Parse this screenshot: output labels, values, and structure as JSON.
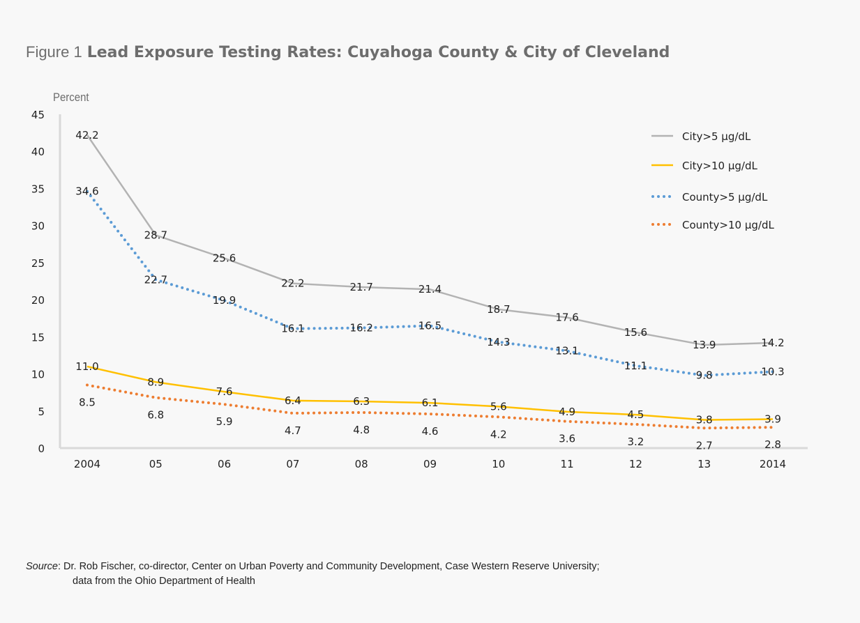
{
  "title": {
    "prefix": "Figure 1",
    "main": "Lead Exposure Testing Rates: Cuyahoga County & City of Cleveland"
  },
  "source": {
    "label": "Source",
    "line1": "Dr. Rob Fischer, co-director, Center on Urban Poverty and Community Development, Case Western Reserve University;",
    "line2": "data from the Ohio Department of Health"
  },
  "chart_data": {
    "type": "line",
    "title": "Lead Exposure Testing Rates: Cuyahoga County & City of Cleveland",
    "ylabel": "Percent",
    "xlabel": "",
    "categories": [
      "2004",
      "05",
      "06",
      "07",
      "08",
      "09",
      "10",
      "11",
      "12",
      "13",
      "2014"
    ],
    "ylim": [
      0,
      45
    ],
    "yticks": [
      0,
      5,
      10,
      15,
      20,
      25,
      30,
      35,
      40,
      45
    ],
    "grid": false,
    "legend": "top-right",
    "series": [
      {
        "name": "City>5 µg/dL",
        "color": "#b3b3b3",
        "style": "solid",
        "values": [
          42.2,
          28.7,
          25.6,
          22.2,
          21.7,
          21.4,
          18.7,
          17.6,
          15.6,
          13.9,
          14.2
        ],
        "labels": [
          "42.2",
          "28.7",
          "25.6",
          "22.2",
          "21.7",
          "21.4",
          "18.7",
          "17.6",
          "15.6",
          "13.9",
          "14.2"
        ]
      },
      {
        "name": "City>10 µg/dL",
        "color": "#ffc000",
        "style": "solid",
        "values": [
          11.0,
          8.9,
          7.6,
          6.4,
          6.3,
          6.1,
          5.6,
          4.9,
          4.5,
          3.8,
          3.9
        ],
        "labels": [
          "11.0",
          "8.9",
          "7.6",
          "6.4",
          "6.3",
          "6.1",
          "5.6",
          "4.9",
          "4.5",
          "3.8",
          "3.9"
        ]
      },
      {
        "name": "County>5 µg/dL",
        "color": "#5b9bd5",
        "style": "dotted",
        "values": [
          34.6,
          22.7,
          19.9,
          16.1,
          16.2,
          16.5,
          14.3,
          13.1,
          11.1,
          9.8,
          10.3
        ],
        "labels": [
          "34.6",
          "22.7",
          "19.9",
          "16.1",
          "16.2",
          "16.5",
          "14.3",
          "13.1",
          "11.1",
          "9.8",
          "10.3"
        ]
      },
      {
        "name": "County>10 µg/dL",
        "color": "#ed7d31",
        "style": "dotted",
        "values": [
          8.5,
          6.8,
          5.9,
          4.7,
          4.8,
          4.6,
          4.2,
          3.6,
          3.2,
          2.7,
          2.8
        ],
        "labels": [
          "8.5",
          "6.8",
          "5.9",
          "4.7",
          "4.8",
          "4.6",
          "4.2",
          "3.6",
          "3.2",
          "2.7",
          "2.8"
        ]
      }
    ]
  }
}
